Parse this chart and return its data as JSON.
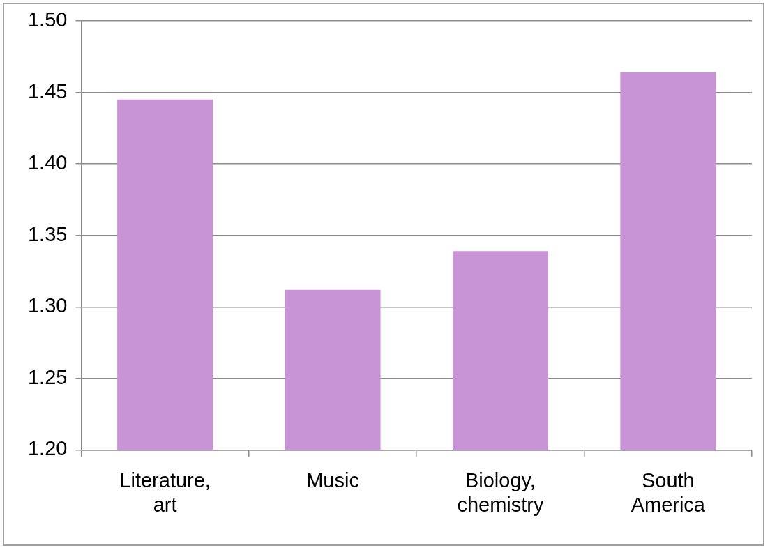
{
  "chart_data": {
    "type": "bar",
    "categories": [
      "Literature,\nart",
      "Music",
      "Biology,\nchemistry",
      "South\nAmerica"
    ],
    "values": [
      1.445,
      1.312,
      1.339,
      1.464
    ],
    "color": "#c994d6",
    "ylim": [
      1.2,
      1.5
    ],
    "yticks": [
      {
        "value": 1.2,
        "label": "1.20"
      },
      {
        "value": 1.25,
        "label": "1.25"
      },
      {
        "value": 1.3,
        "label": "1.30"
      },
      {
        "value": 1.35,
        "label": "1.35"
      },
      {
        "value": 1.4,
        "label": "1.40"
      },
      {
        "value": 1.45,
        "label": "1.45"
      },
      {
        "value": 1.5,
        "label": "1.50"
      }
    ],
    "grid": "y",
    "legend": false
  }
}
